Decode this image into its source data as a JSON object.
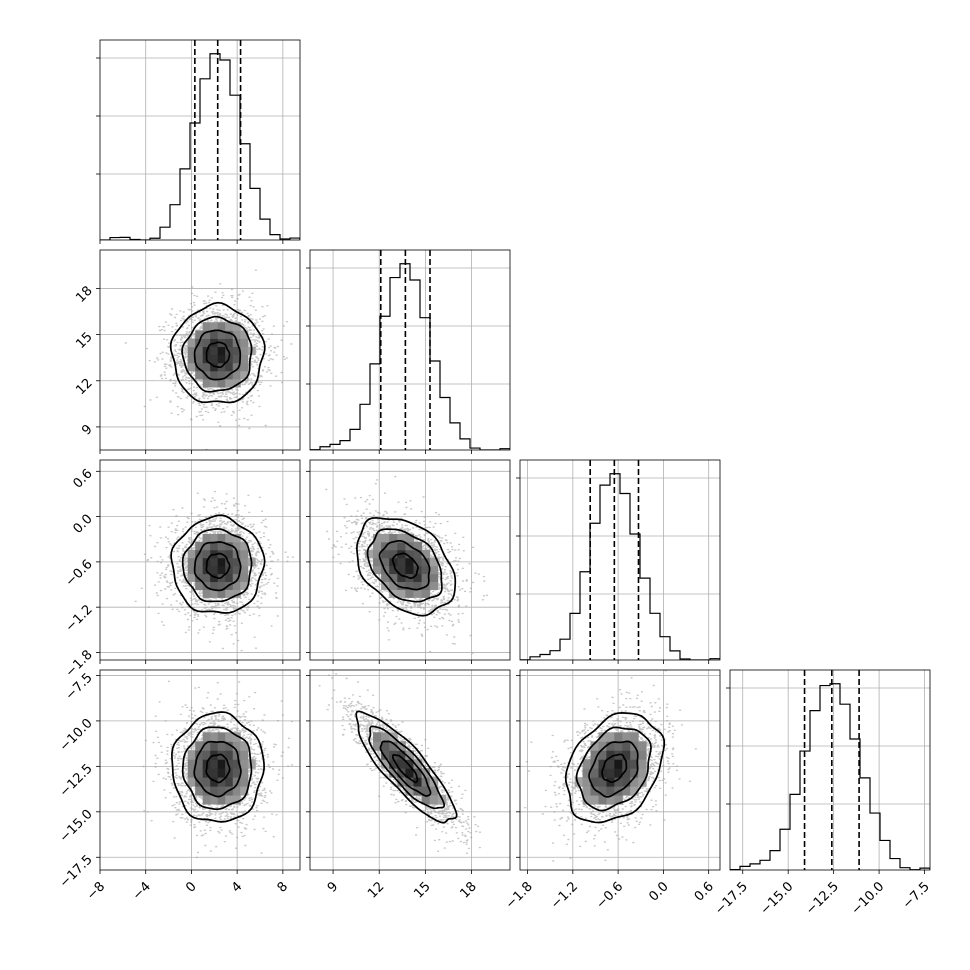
{
  "chart_data": {
    "type": "corner",
    "parameters": [
      {
        "mean": 2.3,
        "std": 2.0,
        "range": [
          -8,
          9.5
        ],
        "ticks": [
          -8,
          -4,
          0,
          4,
          8
        ],
        "tick_labels": [
          "−8",
          "−4",
          "0",
          "4",
          "8"
        ],
        "quantiles": [
          0.3,
          2.3,
          4.3
        ]
      },
      {
        "mean": 13.7,
        "std": 1.6,
        "range": [
          7.5,
          20.5
        ],
        "ticks": [
          9,
          12,
          15,
          18
        ],
        "tick_labels": [
          "9",
          "12",
          "15",
          "18"
        ],
        "quantiles": [
          12.1,
          13.7,
          15.3
        ]
      },
      {
        "mean": -0.65,
        "std": 0.32,
        "range": [
          -1.9,
          0.75
        ],
        "ticks": [
          -1.8,
          -1.2,
          -0.6,
          0.0,
          0.6
        ],
        "tick_labels": [
          "−1.8",
          "−1.2",
          "−0.6",
          "0.0",
          "0.6"
        ],
        "quantiles": [
          -0.97,
          -0.65,
          -0.33
        ]
      },
      {
        "mean": -12.6,
        "std": 1.5,
        "range": [
          -18.2,
          -7.2
        ],
        "ticks": [
          -17.5,
          -15.0,
          -12.5,
          -10.0,
          -7.5
        ],
        "tick_labels": [
          "−17.5",
          "−15.0",
          "−12.5",
          "−10.0",
          "−7.5"
        ],
        "quantiles": [
          -14.1,
          -12.6,
          -11.1
        ]
      }
    ],
    "correlations": {
      "1-0": 0.0,
      "2-0": 0.0,
      "2-1": -0.35,
      "3-0": 0.0,
      "3-1": -0.85,
      "3-2": 0.3
    },
    "contour_levels_sigma": [
      0.5,
      1.0,
      1.5,
      2.0
    ],
    "grid": true
  }
}
